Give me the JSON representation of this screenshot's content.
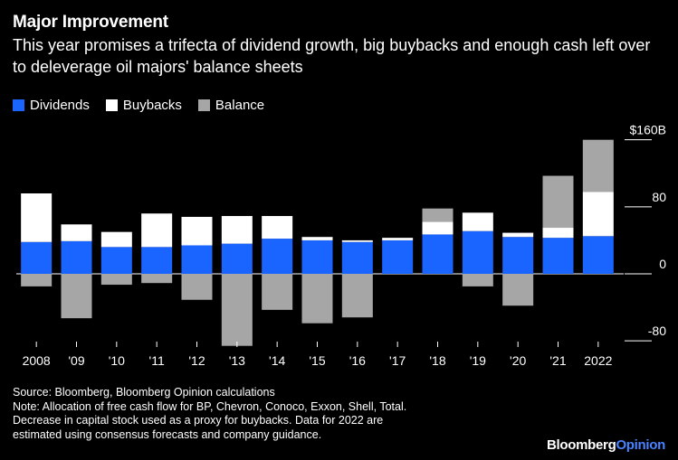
{
  "title": "Major Improvement",
  "subtitle": "This year promises a trifecta of dividend growth, big buybacks and enough cash left over to deleverage oil majors' balance sheets",
  "legend": {
    "dividends": "Dividends",
    "buybacks": "Buybacks",
    "balance": "Balance"
  },
  "colors": {
    "dividends": "#1a64ff",
    "buybacks": "#ffffff",
    "balance": "#a6a6a6",
    "background": "#000000",
    "text": "#ffffff",
    "brand_accent": "#4a83ff"
  },
  "chart_data": {
    "type": "bar",
    "stacked": true,
    "categories": [
      "2008",
      "'09",
      "'10",
      "'11",
      "'12",
      "'13",
      "'14",
      "'15",
      "'16",
      "'17",
      "'18",
      "'19",
      "'20",
      "'21",
      "2022"
    ],
    "series": [
      {
        "name": "Dividends",
        "values": [
          38,
          39,
          32,
          32,
          34,
          36,
          42,
          40,
          38,
          40,
          47,
          51,
          44,
          43,
          45
        ]
      },
      {
        "name": "Buybacks",
        "values": [
          58,
          20,
          18,
          40,
          34,
          33,
          27,
          4,
          2,
          3,
          15,
          22,
          5,
          12,
          53
        ]
      },
      {
        "name": "Balance",
        "values": [
          -15,
          -53,
          -13,
          -11,
          -31,
          -86,
          -43,
          -59,
          -52,
          0,
          16,
          -15,
          -38,
          62,
          62
        ]
      }
    ],
    "yticks": [
      {
        "value": 160,
        "label": "$160B"
      },
      {
        "value": 80,
        "label": "80"
      },
      {
        "value": 0,
        "label": "0"
      },
      {
        "value": -80,
        "label": "-80"
      }
    ],
    "ylim": [
      -88,
      160
    ],
    "grid": false
  },
  "footer": {
    "source": "Source: Bloomberg, Bloomberg Opinion calculations",
    "note1": "Note: Allocation of free cash flow for BP, Chevron, Conoco, Exxon, Shell, Total.",
    "note2": "Decrease in capital stock used as a proxy for buybacks. Data for 2022 are",
    "note3": "estimated using consensus forecasts and company guidance."
  },
  "brand": {
    "name": "Bloomberg",
    "suffix": "Opinion"
  }
}
